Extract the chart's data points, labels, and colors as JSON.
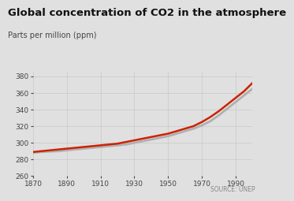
{
  "title": "Global concentration of CO2 in the atmosphere",
  "subtitle": "Parts per million (ppm)",
  "source": "SOURCE: UNEP",
  "xlim": [
    1870,
    2000
  ],
  "ylim": [
    260,
    385
  ],
  "yticks": [
    260,
    280,
    300,
    320,
    340,
    360,
    380
  ],
  "xticks": [
    1870,
    1890,
    1910,
    1930,
    1950,
    1970,
    1990
  ],
  "background_color": "#e0e0e0",
  "line_color_red": "#cc2200",
  "line_color_gray": "#b0b0b0",
  "title_fontsize": 9.5,
  "subtitle_fontsize": 7,
  "tick_fontsize": 6.5,
  "source_fontsize": 5.5,
  "co2_data": {
    "years": [
      1870,
      1875,
      1880,
      1885,
      1890,
      1895,
      1900,
      1905,
      1910,
      1915,
      1920,
      1925,
      1930,
      1935,
      1940,
      1945,
      1950,
      1955,
      1960,
      1965,
      1970,
      1975,
      1980,
      1985,
      1990,
      1995,
      2000
    ],
    "values_red": [
      289,
      290,
      291,
      292,
      293,
      294,
      295,
      296,
      297,
      298,
      299,
      301,
      303,
      305,
      307,
      309,
      311,
      314,
      317,
      320,
      325,
      331,
      338,
      346,
      354,
      362,
      372
    ],
    "values_gray": [
      288,
      289,
      289.5,
      290,
      291,
      292,
      293,
      294,
      295,
      296,
      297,
      298,
      300,
      302,
      304,
      306,
      308,
      311,
      314,
      317,
      321,
      326,
      333,
      341,
      349,
      357,
      365
    ]
  }
}
